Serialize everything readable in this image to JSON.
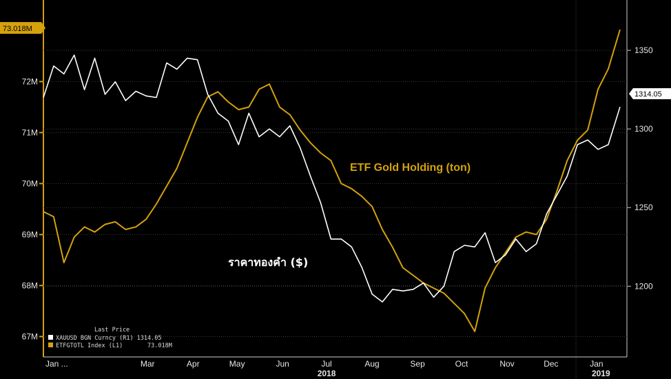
{
  "chart_data": {
    "type": "line",
    "title": "",
    "xlabel": "",
    "ylabel_left": "",
    "ylabel_right": "",
    "x_ticks": [
      "Jan ...",
      "Mar",
      "Apr",
      "May",
      "Jun",
      "Jul",
      "Aug",
      "Sep",
      "Oct",
      "Nov",
      "Dec",
      "Jan"
    ],
    "x_year_labels": [
      "2018",
      "2019"
    ],
    "x_range": [
      "2018-01-03",
      "2019-01-31"
    ],
    "y_left": {
      "ticks": [
        "67M",
        "68M",
        "69M",
        "70M",
        "71M",
        "72M"
      ],
      "range": [
        66.6,
        73.6
      ]
    },
    "y_right": {
      "ticks": [
        "1200",
        "1250",
        "1300",
        "1350"
      ],
      "range": [
        1155,
        1382
      ]
    },
    "last_value_tags": {
      "left": "73.018M",
      "right": "1314.05"
    },
    "annotations": {
      "gold": "ETF Gold Holding (ton)",
      "white": "ราคาทองคำ ($)"
    },
    "legend": {
      "title": "Last Price",
      "items": [
        {
          "name": "XAUUSD BGN Curncy (R1) 1314.05",
          "color": "#ffffff"
        },
        {
          "name": "ETFGTOTL Index (L1)",
          "value": "73.018M",
          "color": "#d4a20c"
        }
      ]
    },
    "colors": {
      "gold": "#d4a20c",
      "price": "#ffffff",
      "background": "#000000"
    },
    "series": [
      {
        "name": "ETFGTOTL Index",
        "axis": "left",
        "x": [
          "2018-01-03",
          "2018-01-10",
          "2018-01-17",
          "2018-01-24",
          "2018-01-31",
          "2018-02-07",
          "2018-02-14",
          "2018-02-21",
          "2018-02-28",
          "2018-03-07",
          "2018-03-14",
          "2018-03-21",
          "2018-03-28",
          "2018-04-04",
          "2018-04-11",
          "2018-04-18",
          "2018-04-25",
          "2018-05-02",
          "2018-05-09",
          "2018-05-16",
          "2018-05-23",
          "2018-05-30",
          "2018-06-06",
          "2018-06-13",
          "2018-06-20",
          "2018-06-27",
          "2018-07-04",
          "2018-07-11",
          "2018-07-18",
          "2018-07-25",
          "2018-08-01",
          "2018-08-08",
          "2018-08-15",
          "2018-08-22",
          "2018-08-29",
          "2018-09-05",
          "2018-09-12",
          "2018-09-19",
          "2018-09-26",
          "2018-10-03",
          "2018-10-10",
          "2018-10-17",
          "2018-10-24",
          "2018-10-31",
          "2018-11-07",
          "2018-11-14",
          "2018-11-21",
          "2018-11-28",
          "2018-12-05",
          "2018-12-12",
          "2018-12-19",
          "2018-12-26",
          "2019-01-02",
          "2019-01-09",
          "2019-01-16",
          "2019-01-23",
          "2019-01-31"
        ],
        "values": [
          69.45,
          69.35,
          68.45,
          68.95,
          69.15,
          69.05,
          69.2,
          69.25,
          69.1,
          69.15,
          69.3,
          69.6,
          69.95,
          70.3,
          70.8,
          71.3,
          71.7,
          71.8,
          71.6,
          71.45,
          71.5,
          71.85,
          71.95,
          71.5,
          71.35,
          71.05,
          70.8,
          70.6,
          70.45,
          70.0,
          69.9,
          69.75,
          69.55,
          69.1,
          68.75,
          68.35,
          68.2,
          68.05,
          67.95,
          67.85,
          67.65,
          67.45,
          67.1,
          67.95,
          68.35,
          68.65,
          68.95,
          69.05,
          69.0,
          69.3,
          69.85,
          70.45,
          70.85,
          71.05,
          71.85,
          72.25,
          73.02
        ]
      },
      {
        "name": "XAUUSD BGN Curncy",
        "axis": "right",
        "x": [
          "2018-01-03",
          "2018-01-10",
          "2018-01-17",
          "2018-01-24",
          "2018-01-31",
          "2018-02-07",
          "2018-02-14",
          "2018-02-21",
          "2018-02-28",
          "2018-03-07",
          "2018-03-14",
          "2018-03-21",
          "2018-03-28",
          "2018-04-04",
          "2018-04-11",
          "2018-04-18",
          "2018-04-25",
          "2018-05-02",
          "2018-05-09",
          "2018-05-16",
          "2018-05-23",
          "2018-05-30",
          "2018-06-06",
          "2018-06-13",
          "2018-06-20",
          "2018-06-27",
          "2018-07-04",
          "2018-07-11",
          "2018-07-18",
          "2018-07-25",
          "2018-08-01",
          "2018-08-08",
          "2018-08-15",
          "2018-08-22",
          "2018-08-29",
          "2018-09-05",
          "2018-09-12",
          "2018-09-19",
          "2018-09-26",
          "2018-10-03",
          "2018-10-10",
          "2018-10-17",
          "2018-10-24",
          "2018-10-31",
          "2018-11-07",
          "2018-11-14",
          "2018-11-21",
          "2018-11-28",
          "2018-12-05",
          "2018-12-12",
          "2018-12-19",
          "2018-12-26",
          "2019-01-02",
          "2019-01-09",
          "2019-01-16",
          "2019-01-23",
          "2019-01-31"
        ],
        "values": [
          1320,
          1340,
          1335,
          1347,
          1325,
          1345,
          1322,
          1330,
          1318,
          1324,
          1321,
          1320,
          1342,
          1338,
          1345,
          1344,
          1322,
          1310,
          1305,
          1290,
          1310,
          1295,
          1300,
          1295,
          1302,
          1288,
          1270,
          1253,
          1230,
          1230,
          1225,
          1212,
          1195,
          1190,
          1198,
          1197,
          1198,
          1202,
          1193,
          1200,
          1222,
          1226,
          1225,
          1234,
          1215,
          1220,
          1230,
          1222,
          1227,
          1246,
          1258,
          1270,
          1290,
          1293,
          1287,
          1290,
          1314
        ]
      }
    ]
  }
}
